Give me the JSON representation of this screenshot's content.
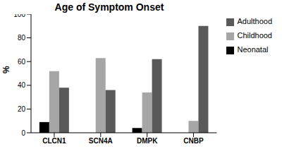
{
  "chart_data": {
    "type": "bar",
    "title": "Age of Symptom Onset",
    "y_label": "%",
    "categories": [
      "CLCN1",
      "SCN4A",
      "DMPK",
      "CNBP"
    ],
    "series": [
      {
        "name": "Neonatal",
        "color": "#000000",
        "values": [
          9,
          0,
          4,
          0
        ]
      },
      {
        "name": "Childhood",
        "color": "#a6a6a6",
        "values": [
          52,
          63,
          34,
          10
        ]
      },
      {
        "name": "Adulthood",
        "color": "#595959",
        "values": [
          38,
          36,
          62,
          90
        ]
      }
    ],
    "ylim": [
      0,
      100
    ],
    "yticks": [
      0,
      20,
      40,
      60,
      80,
      100
    ],
    "grid": false,
    "legend": "right"
  }
}
